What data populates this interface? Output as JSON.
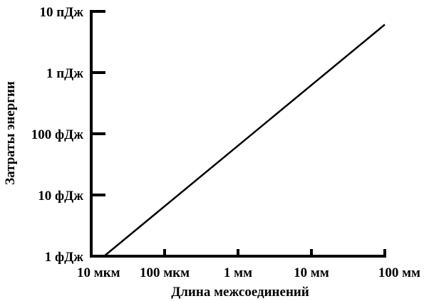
{
  "chart_data": {
    "type": "line",
    "title": "",
    "xlabel": "Длина межсоединений",
    "ylabel": "Затраты энергии",
    "x_scale": "log",
    "y_scale": "log",
    "x_unit": "m",
    "y_unit": "J",
    "xlim": [
      1e-05,
      0.1
    ],
    "ylim": [
      1e-15,
      1e-11
    ],
    "x_ticks": [
      {
        "value": 1e-05,
        "label": "10 мкм"
      },
      {
        "value": 0.0001,
        "label": "100 мкм"
      },
      {
        "value": 0.001,
        "label": "1 мм"
      },
      {
        "value": 0.01,
        "label": "10 мм"
      },
      {
        "value": 0.1,
        "label": "100 мм"
      }
    ],
    "y_ticks": [
      {
        "value": 1e-15,
        "label": "1 фДж"
      },
      {
        "value": 1e-14,
        "label": "10 фДж"
      },
      {
        "value": 1e-13,
        "label": "100 фДж"
      },
      {
        "value": 1e-12,
        "label": "1 пДж"
      },
      {
        "value": 1e-11,
        "label": "10 пДж"
      }
    ],
    "grid": false,
    "series": [
      {
        "color": "#000000",
        "points": [
          {
            "x": 1.5e-05,
            "y": 1e-15
          },
          {
            "x": 0.1,
            "y": 6.1e-12
          }
        ]
      }
    ]
  }
}
